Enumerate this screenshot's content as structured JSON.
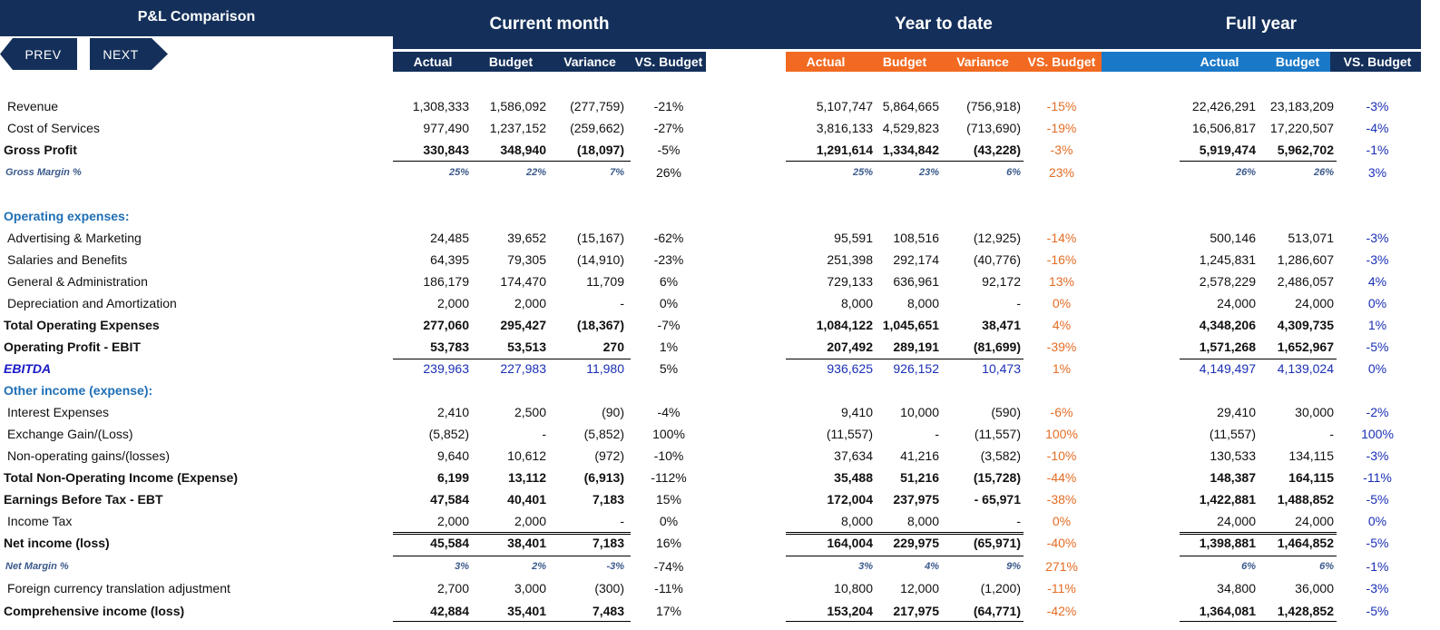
{
  "title": "P&L Comparison",
  "nav": {
    "prev": "PREV",
    "next": "NEXT"
  },
  "sections": {
    "current_month": "Current month",
    "year_to_date": "Year to date",
    "full_year": "Full year"
  },
  "columns": {
    "cm": [
      "Actual",
      "Budget",
      "Variance",
      "VS. Budget"
    ],
    "ytd": [
      "Actual",
      "Budget",
      "Variance",
      "VS. Budget"
    ],
    "fy": [
      "Actual",
      "Budget",
      "VS. Budget"
    ]
  },
  "colors": {
    "navy": "#14305a",
    "orange": "#f26a21",
    "blue": "#1a78c8",
    "accent_text_orange": "#e46c24",
    "accent_text_blue": "#1a2fb5"
  },
  "rows": [
    {
      "label": "Revenue",
      "style": "normal",
      "cm": [
        "1,308,333",
        "1,586,092",
        "(277,759)",
        "-21%"
      ],
      "ytd": [
        "5,107,747",
        "5,864,665",
        "(756,918)",
        "-15%"
      ],
      "fy": [
        "22,426,291",
        "23,183,209",
        "-3%"
      ]
    },
    {
      "label": "Cost of Services",
      "style": "normal",
      "cm": [
        "977,490",
        "1,237,152",
        "(259,662)",
        "-27%"
      ],
      "ytd": [
        "3,816,133",
        "4,529,823",
        "(713,690)",
        "-19%"
      ],
      "fy": [
        "16,506,817",
        "17,220,507",
        "-4%"
      ]
    },
    {
      "label": "Gross Profit",
      "style": "bold",
      "cm": [
        "330,843",
        "348,940",
        "(18,097)",
        "-5%"
      ],
      "ytd": [
        "1,291,614",
        "1,334,842",
        "(43,228)",
        "-3%"
      ],
      "fy": [
        "5,919,474",
        "5,962,702",
        "-1%"
      ]
    },
    {
      "label": "Gross Margin %",
      "style": "margin",
      "cm": [
        "25%",
        "22%",
        "7%",
        "26%"
      ],
      "ytd": [
        "25%",
        "23%",
        "6%",
        "23%"
      ],
      "fy": [
        "26%",
        "26%",
        "3%"
      ]
    },
    {
      "label": "Operating expenses:",
      "style": "heading"
    },
    {
      "label": "Advertising & Marketing",
      "style": "normal",
      "cm": [
        "24,485",
        "39,652",
        "(15,167)",
        "-62%"
      ],
      "ytd": [
        "95,591",
        "108,516",
        "(12,925)",
        "-14%"
      ],
      "fy": [
        "500,146",
        "513,071",
        "-3%"
      ]
    },
    {
      "label": "Salaries and Benefits",
      "style": "normal",
      "cm": [
        "64,395",
        "79,305",
        "(14,910)",
        "-23%"
      ],
      "ytd": [
        "251,398",
        "292,174",
        "(40,776)",
        "-16%"
      ],
      "fy": [
        "1,245,831",
        "1,286,607",
        "-3%"
      ]
    },
    {
      "label": "General & Administration",
      "style": "normal",
      "cm": [
        "186,179",
        "174,470",
        "11,709",
        "6%"
      ],
      "ytd": [
        "729,133",
        "636,961",
        "92,172",
        "13%"
      ],
      "fy": [
        "2,578,229",
        "2,486,057",
        "4%"
      ]
    },
    {
      "label": "Depreciation and Amortization",
      "style": "normal",
      "cm": [
        "2,000",
        "2,000",
        "-",
        "0%"
      ],
      "ytd": [
        "8,000",
        "8,000",
        "-",
        "0%"
      ],
      "fy": [
        "24,000",
        "24,000",
        "0%"
      ]
    },
    {
      "label": "Total Operating Expenses",
      "style": "bold",
      "cm": [
        "277,060",
        "295,427",
        "(18,367)",
        "-7%"
      ],
      "ytd": [
        "1,084,122",
        "1,045,651",
        "38,471",
        "4%"
      ],
      "fy": [
        "4,348,206",
        "4,309,735",
        "1%"
      ]
    },
    {
      "label": "Operating Profit - EBIT",
      "style": "bold",
      "cm": [
        "53,783",
        "53,513",
        "270",
        "1%"
      ],
      "ytd": [
        "207,492",
        "289,191",
        "(81,699)",
        "-39%"
      ],
      "fy": [
        "1,571,268",
        "1,652,967",
        "-5%"
      ]
    },
    {
      "label": "EBITDA",
      "style": "ebitda",
      "cm": [
        "239,963",
        "227,983",
        "11,980",
        "5%"
      ],
      "ytd": [
        "936,625",
        "926,152",
        "10,473",
        "1%"
      ],
      "fy": [
        "4,149,497",
        "4,139,024",
        "0%"
      ]
    },
    {
      "label": "Other income (expense):",
      "style": "heading"
    },
    {
      "label": "Interest Expenses",
      "style": "normal",
      "cm": [
        "2,410",
        "2,500",
        "(90)",
        "-4%"
      ],
      "ytd": [
        "9,410",
        "10,000",
        "(590)",
        "-6%"
      ],
      "fy": [
        "29,410",
        "30,000",
        "-2%"
      ]
    },
    {
      "label": "Exchange Gain/(Loss)",
      "style": "normal",
      "cm": [
        "(5,852)",
        "-",
        "(5,852)",
        "100%"
      ],
      "ytd": [
        "(11,557)",
        "-",
        "(11,557)",
        "100%"
      ],
      "fy": [
        "(11,557)",
        "-",
        "100%"
      ]
    },
    {
      "label": "Non-operating gains/(losses)",
      "style": "normal",
      "cm": [
        "9,640",
        "10,612",
        "(972)",
        "-10%"
      ],
      "ytd": [
        "37,634",
        "41,216",
        "(3,582)",
        "-10%"
      ],
      "fy": [
        "130,533",
        "134,115",
        "-3%"
      ]
    },
    {
      "label": "Total Non-Operating Income (Expense)",
      "style": "bold",
      "cm": [
        "6,199",
        "13,112",
        "(6,913)",
        "-112%"
      ],
      "ytd": [
        "35,488",
        "51,216",
        "(15,728)",
        "-44%"
      ],
      "fy": [
        "148,387",
        "164,115",
        "-11%"
      ]
    },
    {
      "label": "Earnings Before Tax - EBT",
      "style": "bold",
      "cm": [
        "47,584",
        "40,401",
        "7,183",
        "15%"
      ],
      "ytd": [
        "172,004",
        "237,975",
        "- 65,971",
        "-38%"
      ],
      "fy": [
        "1,422,881",
        "1,488,852",
        "-5%"
      ]
    },
    {
      "label": "Income Tax",
      "style": "normal",
      "cm": [
        "2,000",
        "2,000",
        "-",
        "0%"
      ],
      "ytd": [
        "8,000",
        "8,000",
        "-",
        "0%"
      ],
      "fy": [
        "24,000",
        "24,000",
        "0%"
      ]
    },
    {
      "label": "Net income (loss)",
      "style": "bold",
      "cm": [
        "45,584",
        "38,401",
        "7,183",
        "16%"
      ],
      "ytd": [
        "164,004",
        "229,975",
        "(65,971)",
        "-40%"
      ],
      "fy": [
        "1,398,881",
        "1,464,852",
        "-5%"
      ]
    },
    {
      "label": "Net Margin %",
      "style": "margin",
      "cm": [
        "3%",
        "2%",
        "-3%",
        "-74%"
      ],
      "ytd": [
        "3%",
        "4%",
        "9%",
        "271%"
      ],
      "fy": [
        "6%",
        "6%",
        "-1%"
      ]
    },
    {
      "label": "Foreign currency translation adjustment",
      "style": "normal",
      "cm": [
        "2,700",
        "3,000",
        "(300)",
        "-11%"
      ],
      "ytd": [
        "10,800",
        "12,000",
        "(1,200)",
        "-11%"
      ],
      "fy": [
        "34,800",
        "36,000",
        "-3%"
      ]
    },
    {
      "label": "Comprehensive income (loss)",
      "style": "bold",
      "cm": [
        "42,884",
        "35,401",
        "7,483",
        "17%"
      ],
      "ytd": [
        "153,204",
        "217,975",
        "(64,771)",
        "-42%"
      ],
      "fy": [
        "1,364,081",
        "1,428,852",
        "-5%"
      ]
    }
  ]
}
